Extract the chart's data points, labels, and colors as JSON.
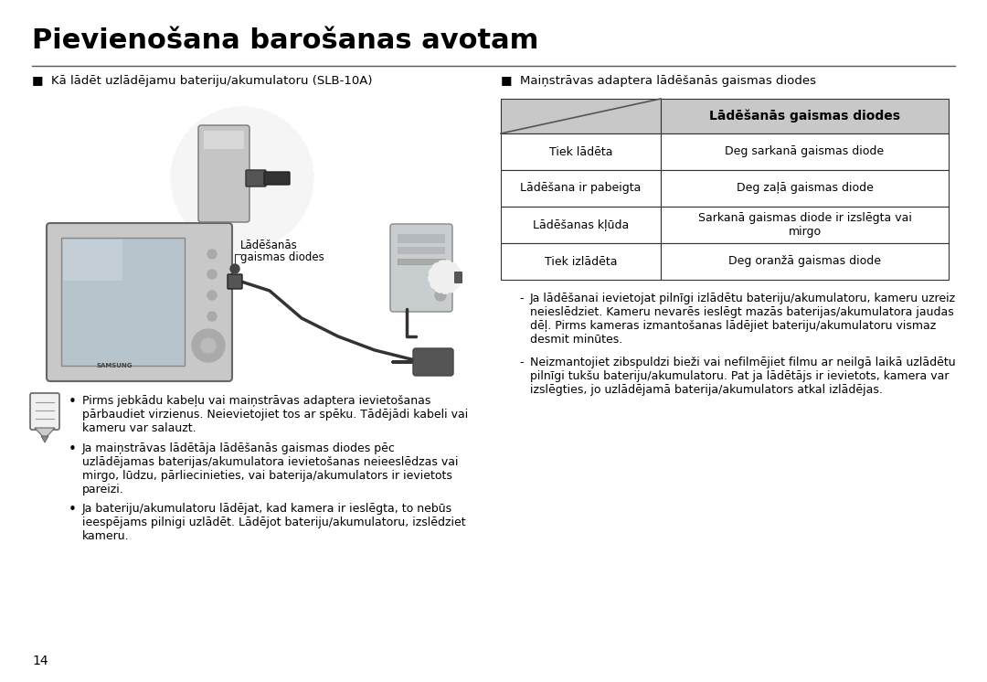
{
  "title": "Pievienošana barošanas avotam",
  "bg_color": "#ffffff",
  "title_color": "#000000",
  "title_fontsize": 22,
  "separator_color": "#555555",
  "left_heading": "■  Kā lādēt uzlādējamu bateriju/akumulatoru (SLB-10A)",
  "right_heading": "■  Maiņstrāvas adaptera lādēšanās gaismas diodes",
  "label_charging_line1": "Lādēšanās",
  "label_charging_line2": "gaismas diodes",
  "table_header_col2": "Lādēšanās gaismas diodes",
  "table_border_color": "#000000",
  "table_rows": [
    [
      "Tiek lādēta",
      "Deg sarkanā gaismas diode"
    ],
    [
      "Lādēšana ir pabeigta",
      "Deg zaļā gaismas diode"
    ],
    [
      "Lādēšanas kļūda",
      "Sarkanā gaismas diode ir izslēgta vai\nmirgo"
    ],
    [
      "Tiek izlādēta",
      "Deg oranžā gaismas diode"
    ]
  ],
  "dash_bullet1_prefix": "-",
  "dash_bullet1": "Ja lādēšanai ievietojat pilnīgi izlādētu bateriju/akumulatoru, kameru uzreiz\nneieeslēdziet. Kameru nevarēs ieslēgt mazās baterijas/akumulatora jaudas\ndēļ. Pirms kameras izmantošanas lādējiet bateriju/akumulatoru vismaz\ndesmit minūtes.",
  "dash_bullet2": "Neizmantojiet zibspuldzi bieži vai nefilmējiet filmu ar neilgā laikā uzlādētu\npilnigi tukšu bateriju/akumulatoru. Pat ja lādētājs ir ievietots, kamera var\nizslēgties, jo uzlādējamā baterija/akumulators atkal izlādējas.",
  "note_bullet1": "Pirms jebkādu kabeļu vai maiņstrāvas adaptera ievietošanas\npārbaudiet virzienus. Neievietojiet tos ar spēku. Tādējādi kabeli vai\nkameru var salauzt.",
  "note_bullet2": "Ja maiņstrāvas lādētāja lādēšanās gaismas diodes pēc\nuzlādējamas baterijas/akumulatora ievietošanas neieeslēdzas vai\nmirgo, lūdzu, pārliecinieties, vai baterija/akumulators ir ievietots\npareizi.",
  "note_bullet3": "Ja bateriju/akumulatoru lādējat, kad kamera ir ieslēgta, to nebūs\nieespējams pilnigi uzlādēt. Lādējot bateriju/akumulatoru, izslēdziet\nkameru.",
  "page_number": "14",
  "font_color": "#000000",
  "body_fontsize": 9.0
}
